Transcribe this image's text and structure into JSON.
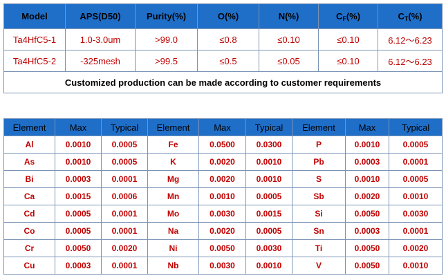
{
  "spec_table": {
    "headers": {
      "model": "Model",
      "aps": "APS(D50)",
      "purity": "Purity(%)",
      "o": "O(%)",
      "n": "N(%)",
      "cf_base": "C",
      "cf_sub": "F",
      "cf_unit": "(%)",
      "ct_base": "C",
      "ct_sub": "T",
      "ct_unit": "(%)"
    },
    "rows": [
      [
        "Ta4HfC5-1",
        "1.0-3.0um",
        ">99.0",
        "≤0.8",
        "≤0.10",
        "≤0.10",
        "6.12～6.23"
      ],
      [
        "Ta4HfC5-2",
        "-325mesh",
        ">99.5",
        "≤0.5",
        "≤0.05",
        "≤0.10",
        "6.12～6.23"
      ]
    ],
    "note": "Customized production can be made according to customer requirements"
  },
  "impurity_table": {
    "headers": [
      "Element",
      "Max",
      "Typical",
      "Element",
      "Max",
      "Typical",
      "Element",
      "Max",
      "Typical"
    ],
    "rows": [
      [
        "Al",
        "0.0010",
        "0.0005",
        "Fe",
        "0.0500",
        "0.0300",
        "P",
        "0.0010",
        "0.0005"
      ],
      [
        "As",
        "0.0010",
        "0.0005",
        "K",
        "0.0020",
        "0.0010",
        "Pb",
        "0.0003",
        "0.0001"
      ],
      [
        "Bi",
        "0.0003",
        "0.0001",
        "Mg",
        "0.0020",
        "0.0010",
        "S",
        "0.0010",
        "0.0005"
      ],
      [
        "Ca",
        "0.0015",
        "0.0006",
        "Mn",
        "0.0010",
        "0.0005",
        "Sb",
        "0.0020",
        "0.0010"
      ],
      [
        "Cd",
        "0.0005",
        "0.0001",
        "Mo",
        "0.0030",
        "0.0015",
        "Si",
        "0.0050",
        "0.0030"
      ],
      [
        "Co",
        "0.0005",
        "0.0001",
        "Na",
        "0.0020",
        "0.0005",
        "Sn",
        "0.0003",
        "0.0001"
      ],
      [
        "Cr",
        "0.0050",
        "0.0020",
        "Ni",
        "0.0050",
        "0.0030",
        "Ti",
        "0.0050",
        "0.0020"
      ],
      [
        "Cu",
        "0.0003",
        "0.0001",
        "Nb",
        "0.0030",
        "0.0010",
        "V",
        "0.0050",
        "0.0010"
      ]
    ]
  },
  "colors": {
    "header_bg": "#1f6fc9",
    "value_text": "#c00000",
    "border": "#7a93b5"
  }
}
